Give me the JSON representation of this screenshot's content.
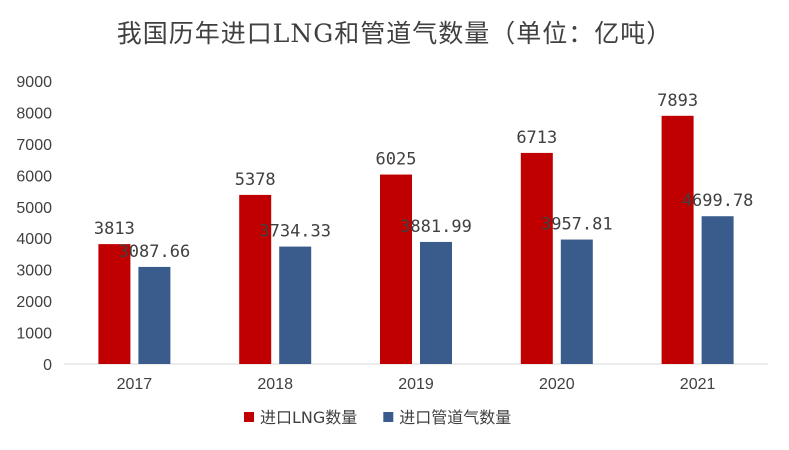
{
  "chart_data": {
    "type": "bar",
    "title": "我国历年进口LNG和管道气数量（单位：亿吨）",
    "categories": [
      "2017",
      "2018",
      "2019",
      "2020",
      "2021"
    ],
    "series": [
      {
        "name": "进口LNG数量",
        "values": [
          3813,
          5378,
          6025,
          6713,
          7893
        ],
        "labels": [
          "3813",
          "5378",
          "6025",
          "6713",
          "7893"
        ],
        "color": "#C00000"
      },
      {
        "name": "进口管道气数量",
        "values": [
          3087.66,
          3734.33,
          3881.99,
          3957.81,
          4699.78
        ],
        "labels": [
          "3087.66",
          "3734.33",
          "3881.99",
          "3957.81",
          "4699.78"
        ],
        "color": "#3A5C8C"
      }
    ],
    "ylim": [
      0,
      9000
    ],
    "yticks": [
      "0",
      "1000",
      "2000",
      "3000",
      "4000",
      "5000",
      "6000",
      "7000",
      "8000",
      "9000"
    ],
    "grid": false,
    "legend": "bottom-center"
  }
}
